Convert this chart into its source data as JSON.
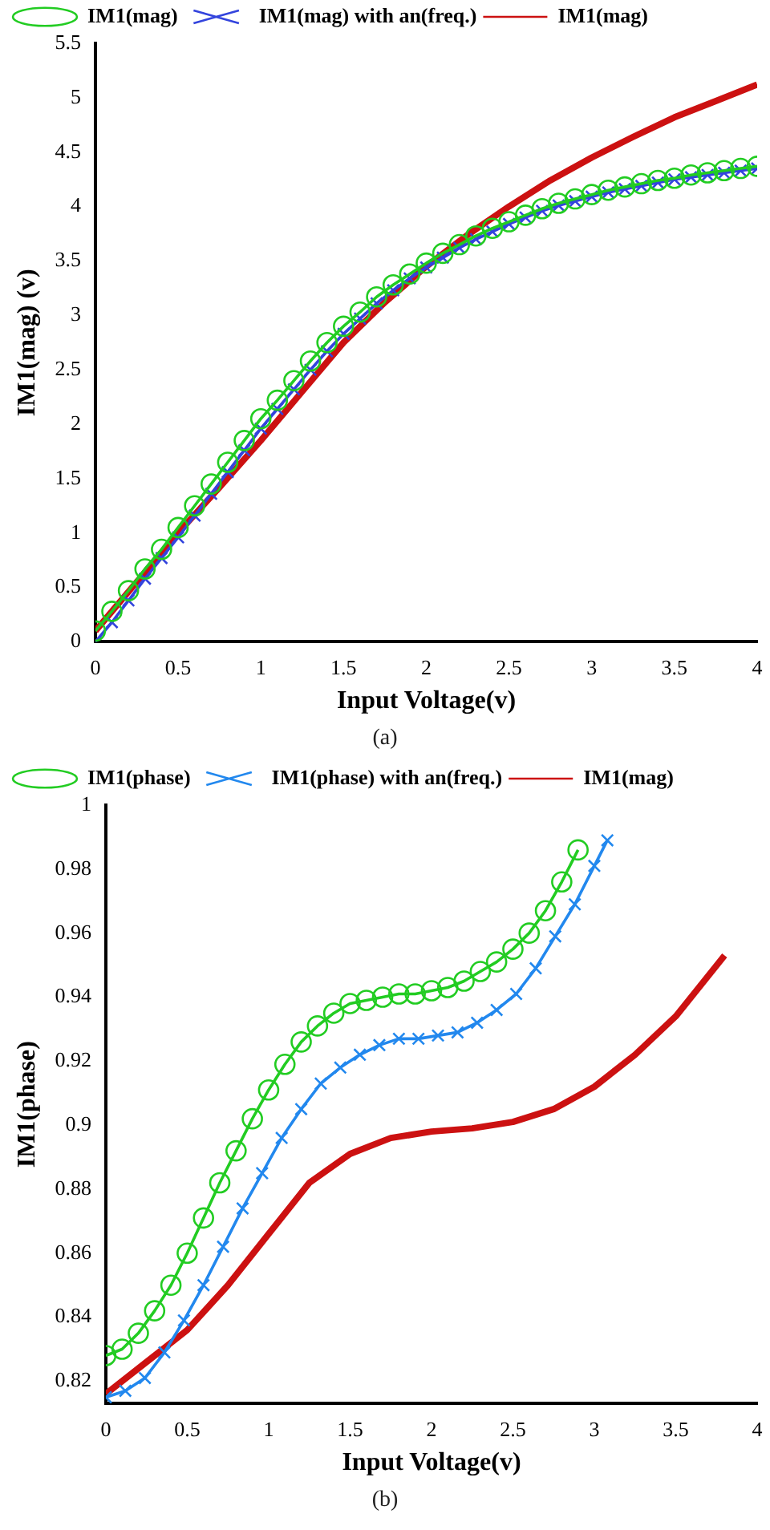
{
  "chart_data": [
    {
      "type": "line",
      "xlabel": "Input Voltage(v)",
      "ylabel": "IM1(mag) (v)",
      "annotations": [
        "(a)"
      ],
      "xlim": [
        0,
        4
      ],
      "xticks": [
        0,
        0.5,
        1,
        1.5,
        2,
        2.5,
        3,
        3.5,
        4
      ],
      "ylim": [
        0,
        5.5
      ],
      "yticks": [
        0,
        0.5,
        1,
        1.5,
        2,
        2.5,
        3,
        3.5,
        4,
        4.5,
        5,
        5.5
      ],
      "grid": false,
      "legend": "top left",
      "series": [
        {
          "name": "IM1(mag)",
          "color": "#22cc22",
          "marker": "circle",
          "x": [
            0,
            0.1,
            0.2,
            0.3,
            0.4,
            0.5,
            0.6,
            0.7,
            0.8,
            0.9,
            1,
            1.1,
            1.2,
            1.3,
            1.4,
            1.5,
            1.6,
            1.7,
            1.8,
            1.9,
            2,
            2.1,
            2.2,
            2.3,
            2.4,
            2.5,
            2.6,
            2.7,
            2.8,
            2.9,
            3,
            3.1,
            3.2,
            3.3,
            3.4,
            3.5,
            3.6,
            3.7,
            3.8,
            3.9,
            4
          ],
          "values": [
            0.1,
            0.28,
            0.47,
            0.67,
            0.85,
            1.05,
            1.25,
            1.45,
            1.65,
            1.85,
            2.05,
            2.22,
            2.4,
            2.58,
            2.75,
            2.9,
            3.03,
            3.17,
            3.28,
            3.38,
            3.48,
            3.57,
            3.65,
            3.73,
            3.8,
            3.86,
            3.92,
            3.98,
            4.03,
            4.07,
            4.11,
            4.15,
            4.18,
            4.21,
            4.24,
            4.26,
            4.29,
            4.31,
            4.33,
            4.35,
            4.37
          ]
        },
        {
          "name": "IM1(mag) with an(freq.)",
          "color": "#3344dd",
          "marker": "cross",
          "x": [
            0,
            0.1,
            0.2,
            0.3,
            0.4,
            0.5,
            0.6,
            0.7,
            0.8,
            0.9,
            1,
            1.1,
            1.2,
            1.3,
            1.4,
            1.5,
            1.6,
            1.7,
            1.8,
            1.9,
            2,
            2.1,
            2.2,
            2.3,
            2.4,
            2.5,
            2.6,
            2.7,
            2.8,
            2.9,
            3,
            3.1,
            3.2,
            3.3,
            3.4,
            3.5,
            3.6,
            3.7,
            3.8,
            3.9,
            4
          ],
          "values": [
            0,
            0.18,
            0.38,
            0.58,
            0.77,
            0.96,
            1.16,
            1.36,
            1.56,
            1.76,
            1.96,
            2.14,
            2.32,
            2.5,
            2.67,
            2.83,
            2.97,
            3.11,
            3.23,
            3.34,
            3.44,
            3.53,
            3.62,
            3.7,
            3.77,
            3.84,
            3.9,
            3.96,
            4.01,
            4.05,
            4.09,
            4.13,
            4.16,
            4.19,
            4.22,
            4.25,
            4.27,
            4.29,
            4.31,
            4.33,
            4.35
          ]
        },
        {
          "name": "IM1(mag)",
          "color": "#cc1111",
          "marker": "none",
          "x": [
            0,
            0.25,
            0.5,
            0.75,
            1,
            1.25,
            1.5,
            1.75,
            2,
            2.25,
            2.5,
            2.75,
            3,
            3.25,
            3.5,
            3.75,
            4
          ],
          "values": [
            0.1,
            0.55,
            1.0,
            1.42,
            1.85,
            2.3,
            2.75,
            3.12,
            3.45,
            3.74,
            4.0,
            4.24,
            4.45,
            4.64,
            4.82,
            4.97,
            5.12
          ]
        }
      ]
    },
    {
      "type": "line",
      "xlabel": "Input Voltage(v)",
      "ylabel": "IM1(phase)",
      "annotations": [
        "(b)"
      ],
      "xlim": [
        0,
        4
      ],
      "xticks": [
        0,
        0.5,
        1,
        1.5,
        2,
        2.5,
        3,
        3.5,
        4
      ],
      "ylim": [
        0.813,
        1
      ],
      "yticks": [
        0.82,
        0.84,
        0.86,
        0.88,
        0.9,
        0.92,
        0.94,
        0.96,
        0.98,
        1
      ],
      "grid": false,
      "legend": "top left",
      "series": [
        {
          "name": "IM1(phase)",
          "color": "#22cc22",
          "marker": "circle",
          "x": [
            0,
            0.1,
            0.2,
            0.3,
            0.4,
            0.5,
            0.6,
            0.7,
            0.8,
            0.9,
            1,
            1.1,
            1.2,
            1.3,
            1.4,
            1.5,
            1.6,
            1.7,
            1.8,
            1.9,
            2,
            2.1,
            2.2,
            2.3,
            2.4,
            2.5,
            2.6,
            2.7,
            2.8,
            2.9
          ],
          "values": [
            0.828,
            0.83,
            0.835,
            0.842,
            0.85,
            0.86,
            0.871,
            0.882,
            0.892,
            0.902,
            0.911,
            0.919,
            0.926,
            0.931,
            0.935,
            0.938,
            0.939,
            0.94,
            0.941,
            0.941,
            0.942,
            0.943,
            0.945,
            0.948,
            0.951,
            0.955,
            0.96,
            0.967,
            0.976,
            0.986
          ]
        },
        {
          "name": "IM1(phase) with an(freq.)",
          "color": "#2288ee",
          "marker": "cross",
          "x": [
            0,
            0.12,
            0.24,
            0.36,
            0.48,
            0.6,
            0.72,
            0.84,
            0.96,
            1.08,
            1.2,
            1.32,
            1.44,
            1.56,
            1.68,
            1.8,
            1.92,
            2.04,
            2.16,
            2.28,
            2.4,
            2.52,
            2.64,
            2.76,
            2.88,
            3.0,
            3.08
          ],
          "values": [
            0.815,
            0.817,
            0.821,
            0.829,
            0.839,
            0.85,
            0.862,
            0.874,
            0.885,
            0.896,
            0.905,
            0.913,
            0.918,
            0.922,
            0.925,
            0.927,
            0.927,
            0.928,
            0.929,
            0.932,
            0.936,
            0.941,
            0.949,
            0.959,
            0.969,
            0.981,
            0.989
          ]
        },
        {
          "name": "IM1(mag)",
          "color": "#cc1111",
          "marker": "none",
          "x": [
            0,
            0.25,
            0.5,
            0.75,
            1,
            1.25,
            1.5,
            1.75,
            2,
            2.25,
            2.5,
            2.75,
            3,
            3.25,
            3.5,
            3.8
          ],
          "values": [
            0.816,
            0.826,
            0.836,
            0.85,
            0.866,
            0.882,
            0.891,
            0.896,
            0.898,
            0.899,
            0.901,
            0.905,
            0.912,
            0.922,
            0.934,
            0.953
          ]
        }
      ]
    }
  ]
}
